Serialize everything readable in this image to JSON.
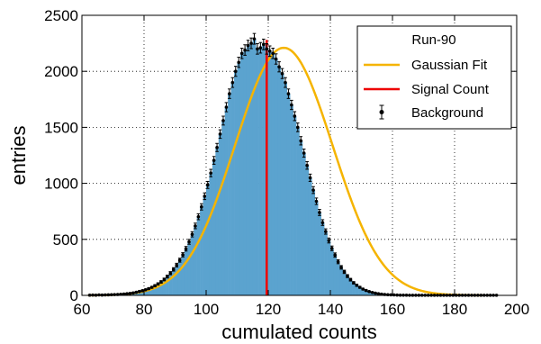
{
  "chart_data": {
    "type": "histogram",
    "title": "",
    "xlabel": "cumulated counts",
    "ylabel": "entries",
    "xlim": [
      60,
      200
    ],
    "ylim": [
      0,
      2500
    ],
    "xticks": [
      60,
      80,
      100,
      120,
      140,
      160,
      180,
      200
    ],
    "yticks": [
      0,
      500,
      1000,
      1500,
      2000,
      2500
    ],
    "grid": true,
    "legend": {
      "title": "Run-90",
      "placement": "top-right",
      "entries": [
        "Gaussian Fit",
        "Signal Count",
        "Background"
      ]
    },
    "histogram": {
      "name": "Background",
      "bin_start": 62,
      "bin_width": 1,
      "counts": [
        2,
        3,
        2,
        4,
        3,
        4,
        5,
        6,
        7,
        8,
        10,
        12,
        15,
        18,
        22,
        28,
        35,
        42,
        50,
        60,
        72,
        86,
        102,
        120,
        142,
        168,
        198,
        232,
        270,
        314,
        362,
        416,
        478,
        545,
        620,
        702,
        790,
        885,
        986,
        1092,
        1205,
        1320,
        1440,
        1560,
        1680,
        1800,
        1900,
        2000,
        2080,
        2160,
        2190,
        2230,
        2250,
        2290,
        2200,
        2210,
        2240,
        2200,
        2180,
        2160,
        2110,
        2040,
        1980,
        1900,
        1800,
        1700,
        1600,
        1500,
        1380,
        1270,
        1160,
        1050,
        940,
        840,
        740,
        650,
        570,
        490,
        420,
        360,
        300,
        250,
        210,
        172,
        140,
        112,
        90,
        72,
        56,
        44,
        34,
        26,
        20,
        15,
        11,
        8,
        6,
        5,
        4,
        3,
        2,
        2,
        2,
        1,
        1,
        1,
        1,
        1,
        1,
        1,
        1,
        1,
        1,
        1,
        1,
        1,
        1,
        1,
        1,
        1,
        1,
        1,
        1,
        1,
        1,
        1,
        1,
        1,
        1,
        1,
        1,
        1
      ]
    },
    "gaussian_fit": {
      "name": "Gaussian Fit",
      "color": "#f5b400",
      "mean": 125,
      "sigma": 15.7,
      "amplitude": 2210,
      "x_range": [
        62,
        189
      ]
    },
    "signal_count": {
      "name": "Signal Count",
      "color": "#ee0000",
      "x": 119.5,
      "y_range": [
        0,
        2280
      ]
    },
    "colors": {
      "histogram_fill": "#5ba3cf",
      "histogram_edge": "#4a90bd",
      "points": "#000000"
    }
  }
}
